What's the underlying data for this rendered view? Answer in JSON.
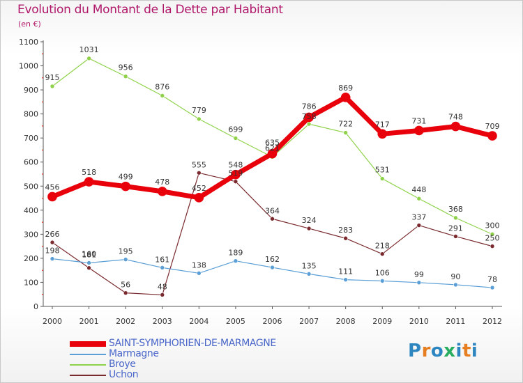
{
  "title": "Evolution du Montant de la Dette par Habitant",
  "unit": "(en €)",
  "chart_data": {
    "type": "line",
    "title": "Evolution du Montant de la Dette par Habitant",
    "ylabel": "(en €)",
    "x": [
      "2000",
      "2001",
      "2002",
      "2003",
      "2004",
      "2005",
      "2006",
      "2007",
      "2008",
      "2009",
      "2010",
      "2011",
      "2012"
    ],
    "ylim": [
      0,
      1100
    ],
    "yticks": [
      0,
      100,
      200,
      300,
      400,
      500,
      600,
      700,
      800,
      900,
      1000,
      1100
    ],
    "grid": false,
    "legend_position": "bottom-left",
    "series": [
      {
        "name": "SAINT-SYMPHORIEN-DE-MARMAGNE",
        "color": "#e8000b",
        "values": [
          456,
          518,
          499,
          478,
          452,
          548,
          635,
          786,
          869,
          717,
          731,
          748,
          709
        ]
      },
      {
        "name": "Marmagne",
        "color": "#5b9fd6",
        "values": [
          198,
          181,
          195,
          161,
          138,
          189,
          162,
          135,
          111,
          106,
          99,
          90,
          78
        ]
      },
      {
        "name": "Broye",
        "color": "#8fd24a",
        "values": [
          915,
          1031,
          956,
          876,
          779,
          699,
          621,
          758,
          722,
          531,
          448,
          368,
          300
        ]
      },
      {
        "name": "Uchon",
        "color": "#7a2a2e",
        "values": [
          266,
          160,
          56,
          48,
          555,
          519,
          364,
          324,
          283,
          218,
          337,
          291,
          250
        ]
      }
    ]
  },
  "logo": {
    "text": "Proxiti",
    "colors": [
      "#2e86c1",
      "#e67e22",
      "#2e86c1",
      "#27ae60",
      "#2e86c1",
      "#e67e22",
      "#2e86c1"
    ]
  }
}
